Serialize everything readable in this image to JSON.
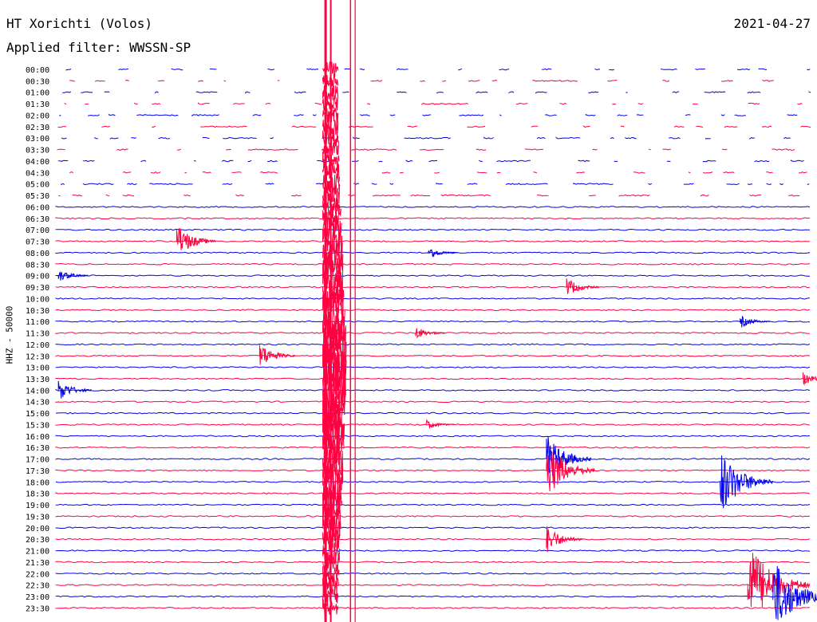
{
  "header": {
    "station": "HT Xorichti (Volos)",
    "date": "2021-04-27",
    "filter": "Applied filter: WWSSN-SP"
  },
  "chart_data": {
    "type": "helicorder",
    "ylabel": "HHZ - 50000",
    "row_labels": [
      "00:00",
      "00:30",
      "01:00",
      "01:30",
      "02:00",
      "02:30",
      "03:00",
      "03:30",
      "04:00",
      "04:30",
      "05:00",
      "05:30",
      "06:00",
      "06:30",
      "07:00",
      "07:30",
      "08:00",
      "08:30",
      "09:00",
      "09:30",
      "10:00",
      "10:30",
      "11:00",
      "11:30",
      "12:00",
      "12:30",
      "13:00",
      "13:30",
      "14:00",
      "14:30",
      "15:00",
      "15:30",
      "16:00",
      "16:30",
      "17:00",
      "17:30",
      "18:00",
      "18:30",
      "19:00",
      "19:30",
      "20:00",
      "20:30",
      "21:00",
      "21:30",
      "22:00",
      "22:30",
      "23:00",
      "23:30"
    ],
    "colors": [
      "#0000ee",
      "#ff0040"
    ],
    "row_duration_minutes": 30,
    "continuous_from_row": 12,
    "events": [
      {
        "row": 15,
        "minute": 4.8,
        "amp": 1.6
      },
      {
        "row": 16,
        "minute": 14.8,
        "amp": 0.6
      },
      {
        "row": 18,
        "minute": 0.1,
        "amp": 0.6
      },
      {
        "row": 19,
        "minute": 20.3,
        "amp": 0.9
      },
      {
        "row": 22,
        "minute": 27.2,
        "amp": 0.6
      },
      {
        "row": 23,
        "minute": 14.3,
        "amp": 0.6
      },
      {
        "row": 25,
        "minute": 8.1,
        "amp": 1.2
      },
      {
        "row": 27,
        "minute": 29.7,
        "amp": 0.6
      },
      {
        "row": 28,
        "minute": 0.1,
        "amp": 1.0
      },
      {
        "row": 31,
        "minute": 14.7,
        "amp": 0.5
      },
      {
        "row": 34,
        "minute": 19.5,
        "amp": 2.2
      },
      {
        "row": 35,
        "minute": 19.5,
        "amp": 2.6
      },
      {
        "row": 36,
        "minute": 26.4,
        "amp": 3.0
      },
      {
        "row": 41,
        "minute": 19.5,
        "amp": 1.3
      },
      {
        "row": 45,
        "minute": 27.5,
        "amp": 4.0
      },
      {
        "row": 46,
        "minute": 28.5,
        "amp": 3.5
      }
    ],
    "large_event": {
      "start_row": 0,
      "end_row": 48,
      "minute": 10.8
    }
  }
}
